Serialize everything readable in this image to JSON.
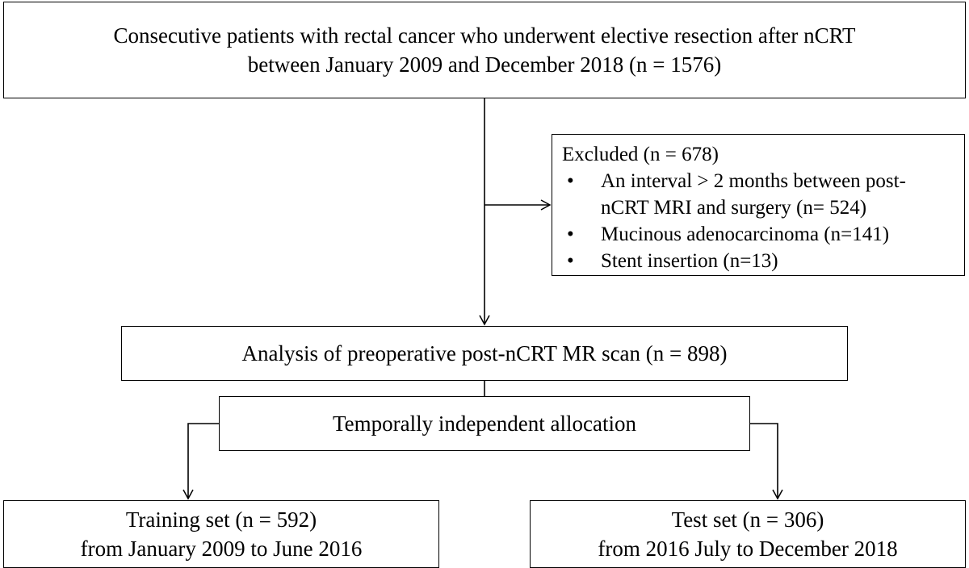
{
  "diagram": {
    "top": {
      "line1": "Consecutive patients with rectal cancer who underwent elective resection after nCRT",
      "line2": "between January 2009 and December 2018 (n = 1576)"
    },
    "excluded": {
      "title": "Excluded (n = 678)",
      "bullet": "•",
      "item1_line1": "An interval > 2 months between post-",
      "item1_line2": "nCRT MRI and surgery (n= 524)",
      "item2": "Mucinous adenocarcinoma (n=141)",
      "item3": "Stent insertion (n=13)"
    },
    "analysis": "Analysis of preoperative post-nCRT MR scan (n = 898)",
    "allocation": "Temporally independent allocation",
    "training": {
      "line1": "Training set (n = 592)",
      "line2": "from January 2009 to June 2016"
    },
    "test": {
      "line1": "Test set (n = 306)",
      "line2": "from 2016 July to December 2018"
    }
  }
}
